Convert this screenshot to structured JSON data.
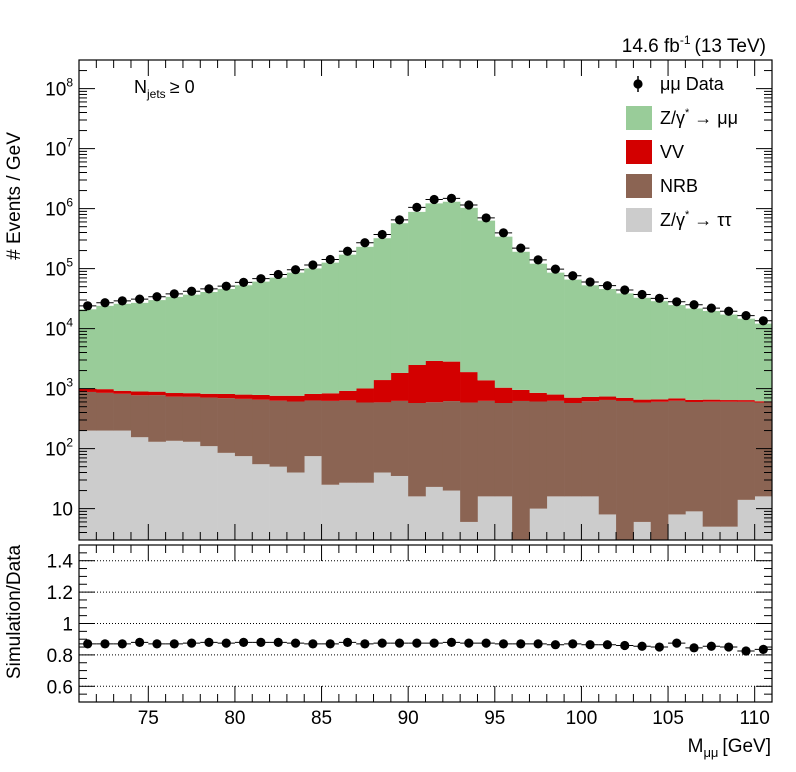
{
  "chart_data": {
    "type": "bar",
    "stacked": true,
    "y_scale": "log",
    "lumi_label": "14.6 fb",
    "lumi_sup": "-1",
    "lumi_energy": "(13 TeV)",
    "category": {
      "base": "N",
      "sub": "jets",
      "cut": "≥ 0"
    },
    "ylabel": "# Events / GeV",
    "xlabel": {
      "base": "M",
      "sub": "μμ",
      "unit": "[GeV]"
    },
    "xlim": [
      71,
      111
    ],
    "ylim": [
      3,
      300000000
    ],
    "xticks": [
      75,
      80,
      85,
      90,
      95,
      100,
      105,
      110
    ],
    "yticks": [
      {
        "value": 10,
        "base": "10",
        "exp": ""
      },
      {
        "value": 100,
        "base": "10",
        "exp": "2"
      },
      {
        "value": 1000,
        "base": "10",
        "exp": "3"
      },
      {
        "value": 10000,
        "base": "10",
        "exp": "4"
      },
      {
        "value": 100000,
        "base": "10",
        "exp": "5"
      },
      {
        "value": 1000000,
        "base": "10",
        "exp": "6"
      },
      {
        "value": 10000000,
        "base": "10",
        "exp": "7"
      },
      {
        "value": 100000000,
        "base": "10",
        "exp": "8"
      }
    ],
    "bin_edges": [
      71,
      72,
      73,
      74,
      75,
      76,
      77,
      78,
      79,
      80,
      81,
      82,
      83,
      84,
      85,
      86,
      87,
      88,
      89,
      90,
      91,
      92,
      93,
      94,
      95,
      96,
      97,
      98,
      99,
      100,
      101,
      102,
      103,
      104,
      105,
      106,
      107,
      108,
      109,
      110,
      111
    ],
    "series": [
      {
        "name": "Z/γ* → ττ",
        "legend": {
          "pre": "Z/γ",
          "sup": "*",
          "post": " → ττ"
        },
        "color": "#cccccc",
        "values": [
          200,
          200,
          200,
          155,
          130,
          135,
          130,
          110,
          85,
          75,
          55,
          50,
          40,
          75,
          25,
          27,
          27,
          40,
          35,
          16,
          23,
          20,
          6,
          16,
          16,
          3,
          10,
          16,
          16,
          16,
          8,
          3,
          6,
          3,
          8,
          9,
          5,
          5,
          14,
          16
        ]
      },
      {
        "name": "NRB",
        "legend": {
          "pre": "NRB",
          "sup": "",
          "post": ""
        },
        "color": "#8b6453",
        "values": [
          680,
          650,
          620,
          620,
          650,
          600,
          600,
          600,
          610,
          600,
          600,
          580,
          570,
          560,
          600,
          610,
          560,
          550,
          590,
          560,
          570,
          600,
          580,
          610,
          560,
          620,
          600,
          610,
          560,
          600,
          640,
          620,
          580,
          600,
          620,
          590,
          600,
          600,
          590,
          570
        ]
      },
      {
        "name": "VV",
        "legend": {
          "pre": "VV",
          "sup": "",
          "post": ""
        },
        "color": "#d30000",
        "values": [
          120,
          130,
          100,
          120,
          110,
          110,
          110,
          110,
          120,
          120,
          130,
          130,
          150,
          180,
          210,
          280,
          420,
          800,
          1200,
          1900,
          2300,
          2200,
          1300,
          750,
          460,
          330,
          240,
          170,
          130,
          110,
          90,
          80,
          70,
          60,
          60,
          50,
          50,
          40,
          40,
          30
        ]
      },
      {
        "name": "Z/γ* → μμ",
        "legend": {
          "pre": "Z/γ",
          "sup": "*",
          "post": " → μμ"
        },
        "color": "#99cc99",
        "values": [
          20000,
          23000,
          25000,
          26000,
          29000,
          33000,
          36000,
          40000,
          45000,
          52000,
          60000,
          70000,
          85000,
          100000,
          125000,
          170000,
          230000,
          320000,
          570000,
          880000,
          1220000,
          1300000,
          1030000,
          630000,
          340000,
          190000,
          120000,
          85000,
          65000,
          52000,
          45000,
          38000,
          32000,
          28000,
          24000,
          21000,
          19000,
          16500,
          14000,
          11500
        ]
      }
    ],
    "data_series": {
      "name": "μμ Data",
      "legend": "μμ Data",
      "values": [
        24000,
        27000,
        29000,
        31000,
        34000,
        38000,
        42000,
        46000,
        51000,
        59000,
        68000,
        80000,
        96000,
        115000,
        142000,
        195000,
        270000,
        370000,
        650000,
        1050000,
        1420000,
        1480000,
        1150000,
        700000,
        395000,
        220000,
        140000,
        98000,
        76000,
        60000,
        52000,
        44000,
        37000,
        32000,
        28000,
        25000,
        22000,
        19500,
        16500,
        13500
      ]
    },
    "ratio": {
      "ylabel": "Simulation/Data",
      "ylim": [
        0.5,
        1.5
      ],
      "yticks": [
        0.6,
        0.8,
        1,
        1.2,
        1.4
      ],
      "ytick_labels": [
        "0.6",
        "0.8",
        "1",
        "1.2",
        "1.4"
      ],
      "gridlines": [
        0.6,
        0.8,
        1.0,
        1.2,
        1.4
      ],
      "values": [
        0.87,
        0.87,
        0.87,
        0.88,
        0.87,
        0.87,
        0.875,
        0.88,
        0.875,
        0.88,
        0.88,
        0.88,
        0.875,
        0.87,
        0.87,
        0.88,
        0.87,
        0.875,
        0.875,
        0.875,
        0.875,
        0.88,
        0.875,
        0.875,
        0.87,
        0.87,
        0.87,
        0.865,
        0.87,
        0.865,
        0.865,
        0.86,
        0.855,
        0.85,
        0.875,
        0.845,
        0.855,
        0.85,
        0.825,
        0.835
      ]
    }
  }
}
